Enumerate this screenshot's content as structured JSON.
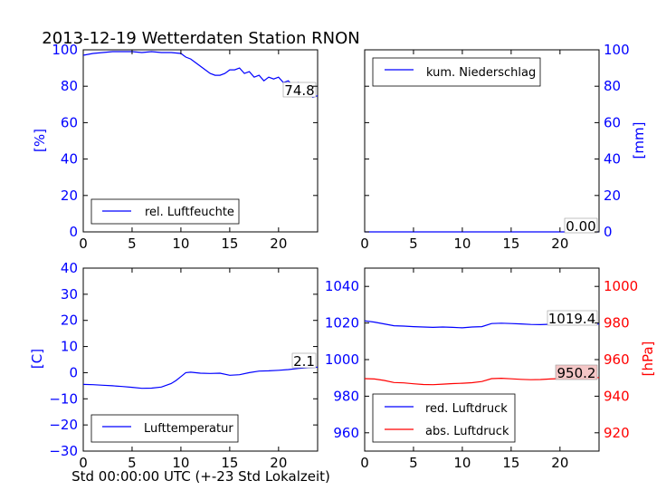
{
  "figure": {
    "title": "2013-12-19 Wetterdaten Station RNON",
    "xlabel": "Std 00:00:00 UTC (+-23 Std Lokalzeit)"
  },
  "colors": {
    "blue": "#0000ff",
    "red": "#ff0000",
    "black": "#000000",
    "highlight": "#f4c6c6"
  },
  "chart_data": [
    {
      "type": "line",
      "panel": "humidity",
      "title": "",
      "xlabel": "",
      "ylabel": "[%]",
      "xlim": [
        0,
        24
      ],
      "ylim": [
        0,
        100
      ],
      "x_ticks": [
        "0",
        "5",
        "10",
        "15",
        "20"
      ],
      "y_ticks": [
        "0",
        "20",
        "40",
        "60",
        "80",
        "100"
      ],
      "legend": {
        "position": "lower-left",
        "entries": [
          "rel. Luftfeuchte"
        ]
      },
      "end_label": "74.8",
      "series": [
        {
          "name": "rel. Luftfeuchte",
          "color": "#0000ff",
          "x": [
            0,
            1,
            2,
            3,
            4,
            5,
            6,
            7,
            8,
            9,
            10,
            10.5,
            11,
            11.5,
            12,
            12.5,
            13,
            13.5,
            14,
            14.5,
            15,
            15.5,
            16,
            16.5,
            17,
            17.5,
            18,
            18.5,
            19,
            19.5,
            20,
            20.5,
            21,
            21.5,
            22,
            22.5,
            23,
            23.5,
            24
          ],
          "y": [
            97,
            98,
            98.5,
            99,
            99,
            99,
            98.5,
            99,
            98.5,
            98.5,
            98,
            96,
            95,
            93,
            91,
            89,
            87,
            86,
            86,
            87,
            89,
            89,
            90,
            87,
            88,
            85,
            86,
            83,
            85,
            84,
            85,
            82,
            83,
            80,
            82,
            79,
            77,
            74,
            74.8
          ]
        }
      ]
    },
    {
      "type": "line",
      "panel": "precipitation",
      "title": "",
      "xlabel": "",
      "ylabel": "[mm]",
      "xlim": [
        0,
        24
      ],
      "ylim": [
        0,
        100
      ],
      "x_ticks": [
        "0",
        "5",
        "10",
        "15",
        "20"
      ],
      "y_ticks": [
        "0",
        "20",
        "40",
        "60",
        "80",
        "100"
      ],
      "legend": {
        "position": "top-left",
        "entries": [
          "kum. Niederschlag"
        ]
      },
      "end_label": "0.00",
      "series": [
        {
          "name": "kum. Niederschlag",
          "color": "#0000ff",
          "x": [
            0,
            24
          ],
          "y": [
            0,
            0
          ]
        }
      ]
    },
    {
      "type": "line",
      "panel": "temperature",
      "title": "",
      "xlabel": "Std 00:00:00 UTC (+-23 Std Lokalzeit)",
      "ylabel": "[C]",
      "xlim": [
        0,
        24
      ],
      "ylim": [
        -30,
        40
      ],
      "x_ticks": [
        "0",
        "5",
        "10",
        "15",
        "20"
      ],
      "y_ticks": [
        "−30",
        "−20",
        "−10",
        "0",
        "10",
        "20",
        "30",
        "40"
      ],
      "legend": {
        "position": "lower-left",
        "entries": [
          "Lufttemperatur"
        ]
      },
      "end_label": "2.1",
      "series": [
        {
          "name": "Lufttemperatur",
          "color": "#0000ff",
          "x": [
            0,
            1,
            2,
            3,
            4,
            5,
            6,
            7,
            8,
            9,
            9.5,
            10,
            10.5,
            11,
            12,
            13,
            14,
            15,
            16,
            17,
            18,
            19,
            20,
            21,
            22,
            23,
            24
          ],
          "y": [
            -4.5,
            -4.6,
            -4.8,
            -5,
            -5.3,
            -5.6,
            -6,
            -5.9,
            -5.5,
            -4.2,
            -3,
            -1.5,
            0,
            0.2,
            -0.2,
            -0.3,
            -0.2,
            -1,
            -0.8,
            0,
            0.6,
            0.7,
            0.9,
            1.2,
            1.6,
            1.9,
            2.1
          ]
        }
      ]
    },
    {
      "type": "line",
      "panel": "pressure",
      "title": "",
      "xlabel": "",
      "ylabel": "",
      "ylabel_right": "[hPa]",
      "xlim": [
        0,
        24
      ],
      "ylim": [
        950,
        1050
      ],
      "ylim_right": [
        910,
        1010
      ],
      "x_ticks": [
        "0",
        "5",
        "10",
        "15",
        "20"
      ],
      "y_ticks": [
        "960",
        "980",
        "1000",
        "1020",
        "1040"
      ],
      "y_ticks_right": [
        "920",
        "940",
        "960",
        "980",
        "1000"
      ],
      "legend": {
        "position": "lower-left",
        "entries": [
          "red. Luftdruck",
          "abs. Luftdruck"
        ]
      },
      "end_label": "1019.4",
      "end_label_2": "950.2",
      "series": [
        {
          "name": "red. Luftdruck",
          "color": "#0000ff",
          "axis": "left",
          "x": [
            0,
            1,
            2,
            3,
            4,
            5,
            6,
            7,
            8,
            9,
            10,
            11,
            12,
            13,
            14,
            15,
            16,
            17,
            18,
            19,
            20,
            21,
            22,
            23,
            24
          ],
          "y": [
            1021.2,
            1020.5,
            1019.5,
            1018.5,
            1018.3,
            1018,
            1017.8,
            1017.6,
            1017.8,
            1017.6,
            1017.4,
            1017.8,
            1018,
            1019.7,
            1019.9,
            1019.7,
            1019.5,
            1019.2,
            1019.1,
            1019.3,
            1019.3,
            1019.2,
            1019.3,
            1019.4,
            1019.4
          ]
        },
        {
          "name": "abs. Luftdruck",
          "color": "#ff0000",
          "axis": "right",
          "x": [
            0,
            1,
            2,
            3,
            4,
            5,
            6,
            7,
            8,
            9,
            10,
            11,
            12,
            13,
            14,
            15,
            16,
            17,
            18,
            19,
            20,
            21,
            22,
            23,
            24
          ],
          "y": [
            949.6,
            949.4,
            948.6,
            947.5,
            947.3,
            946.8,
            946.4,
            946.3,
            946.6,
            946.9,
            947.1,
            947.4,
            948,
            949.6,
            949.8,
            949.5,
            949.2,
            949,
            949.1,
            949.4,
            949.6,
            949.7,
            949.8,
            950,
            950.2
          ]
        }
      ]
    }
  ]
}
